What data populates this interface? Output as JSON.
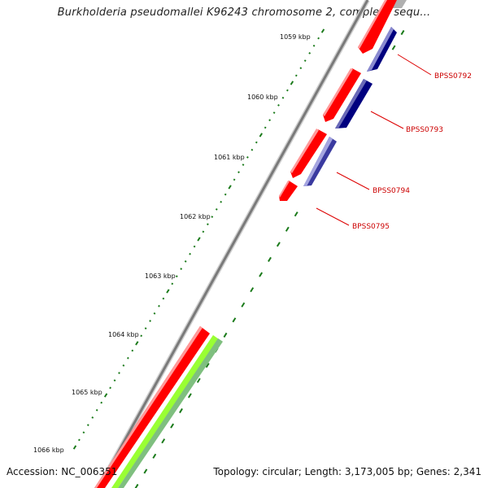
{
  "title": "Burkholderia pseudomallei K96243 chromosome 2, complete sequ...",
  "footer": {
    "accession": "Accession: NC_006351",
    "summary": "Topology: circular; Length: 3,173,005 bp; Genes: 2,341"
  },
  "scale_labels": [
    "1059 kbp",
    "1060 kbp",
    "1061 kbp",
    "1062 kbp",
    "1063 kbp",
    "1064 kbp",
    "1065 kbp",
    "1066 kbp"
  ],
  "gene_labels": [
    "BPSS0792",
    "BPSS0793",
    "BPSS0794",
    "BPSS0795"
  ],
  "colors": {
    "backbone": "#808080",
    "forward_cds": "#ff0000",
    "reverse_cds": "#00007f",
    "reverse_cds_light": "#8080c0",
    "rna": "#99ff33",
    "rna_shadow": "#7fbf7f",
    "tick": "#1a7a1a",
    "label": "#cc0000"
  }
}
